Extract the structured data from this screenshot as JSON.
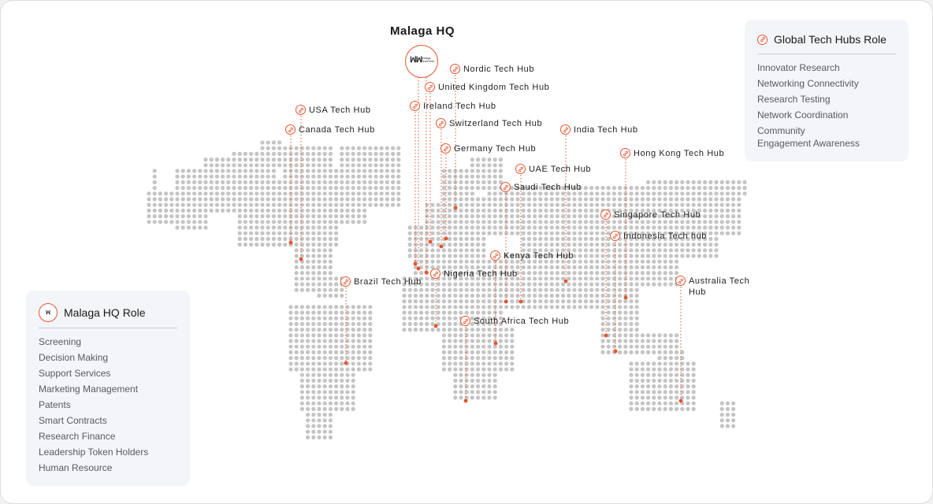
{
  "hq": {
    "title": "Malaga HQ",
    "logo_text": "Malaga TechParks"
  },
  "hubs": [
    {
      "id": "nordic",
      "label": "Nordic Tech Hub"
    },
    {
      "id": "uk",
      "label": "United Kingdom Tech Hub"
    },
    {
      "id": "ireland",
      "label": "Ireland Tech Hub"
    },
    {
      "id": "usa",
      "label": "USA Tech Hub"
    },
    {
      "id": "switzerland",
      "label": "Switzerland Tech Hub"
    },
    {
      "id": "canada",
      "label": "Canada Tech Hub"
    },
    {
      "id": "india",
      "label": "India Tech Hub"
    },
    {
      "id": "germany",
      "label": "Germany Tech Hub"
    },
    {
      "id": "hongkong",
      "label": "Hong Kong Tech Hub"
    },
    {
      "id": "uae",
      "label": "UAE Tech Hub"
    },
    {
      "id": "saudi",
      "label": "Saudi Tech Hub"
    },
    {
      "id": "singapore",
      "label": "Singapore Tech Hub"
    },
    {
      "id": "indonesia",
      "label": "Indonesia Tech hub"
    },
    {
      "id": "kenya",
      "label": "Kenya Tech Hub"
    },
    {
      "id": "nigeria",
      "label": "Nigeria Tech Hub"
    },
    {
      "id": "brazil",
      "label": "Brazil Tech Hub"
    },
    {
      "id": "australia",
      "label": "Australia Tech Hub"
    },
    {
      "id": "southafrica",
      "label": "South Africa Tech Hub"
    }
  ],
  "global_panel": {
    "title": "Global Tech Hubs Role",
    "items": [
      "Innovator Research",
      "Networking Connectivity",
      "Research Testing",
      "Network Coordination",
      "Community Engagement Awareness"
    ]
  },
  "hq_panel": {
    "title": "Malaga HQ Role",
    "items": [
      "Screening",
      "Decision Making",
      "Support Services",
      "Marketing Management",
      "Patents",
      "Smart Contracts",
      "Research Finance",
      "Leadership Token Holders",
      "Human Resource"
    ]
  },
  "colors": {
    "accent": "#e8542d",
    "dot": "#c4c4c4",
    "panel_bg": "#f4f5f8"
  },
  "icons": {
    "hub_pin": "link-icon",
    "hq": "logo"
  }
}
